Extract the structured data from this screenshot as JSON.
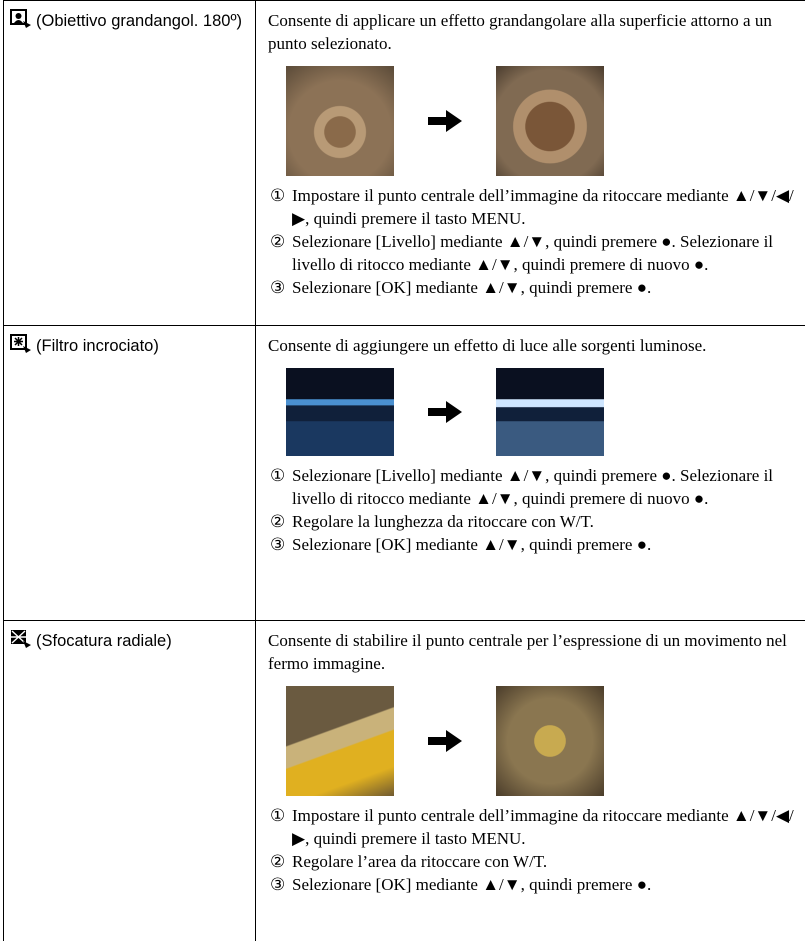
{
  "rows": [
    {
      "label": "(Obiettivo grandangol. 180º)",
      "description": "Consente di applicare un effetto grandangolare alla superficie attorno a un punto selezionato.",
      "steps": [
        {
          "marker": "①",
          "text": "Impostare il punto centrale dell’immagine da ritoccare mediante ▲/▼/◀/▶, quindi premere il tasto MENU."
        },
        {
          "marker": "②",
          "text": "Selezionare [Livello] mediante ▲/▼, quindi premere ●. Selezionare il livello di ritocco mediante ▲/▼, quindi premere di nuovo ●."
        },
        {
          "marker": "③",
          "text": "Selezionare [OK] mediante ▲/▼, quindi premere ●."
        }
      ]
    },
    {
      "label": "(Filtro incrociato)",
      "description": "Consente di aggiungere un effetto di luce alle sorgenti luminose.",
      "steps": [
        {
          "marker": "①",
          "text": "Selezionare [Livello] mediante ▲/▼, quindi premere ●. Selezionare il livello di ritocco mediante ▲/▼, quindi premere di nuovo ●."
        },
        {
          "marker": "②",
          "text": "Regolare la lunghezza da ritoccare con W/T."
        },
        {
          "marker": "③",
          "text": "Selezionare [OK] mediante ▲/▼, quindi premere ●."
        }
      ]
    },
    {
      "label": "(Sfocatura radiale)",
      "description": "Consente di stabilire il punto centrale per l’espressione di un movimento nel fermo immagine.",
      "steps": [
        {
          "marker": "①",
          "text": "Impostare il punto centrale dell’immagine da ritoccare mediante ▲/▼/◀/▶, quindi premere il tasto MENU."
        },
        {
          "marker": "②",
          "text": "Regolare l’area da ritoccare con W/T."
        },
        {
          "marker": "③",
          "text": "Selezionare [OK] mediante ▲/▼, quindi premere ●."
        }
      ]
    }
  ]
}
